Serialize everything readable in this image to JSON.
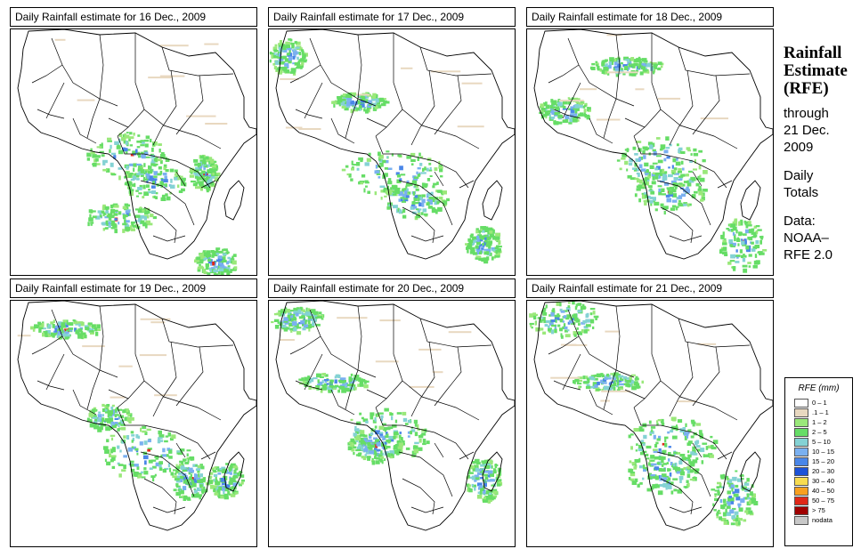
{
  "panels": [
    {
      "title": "Daily Rainfall estimate for  16 Dec., 2009"
    },
    {
      "title": "Daily Rainfall estimate for  17 Dec., 2009"
    },
    {
      "title": "Daily Rainfall estimate for  18 Dec., 2009"
    },
    {
      "title": "Daily Rainfall estimate for  19 Dec., 2009"
    },
    {
      "title": "Daily Rainfall estimate for  20 Dec., 2009"
    },
    {
      "title": "Daily Rainfall estimate for  21 Dec., 2009"
    }
  ],
  "side": {
    "heading1": "Rainfall",
    "heading2": "Estimate",
    "heading3": "(RFE)",
    "line1": "through",
    "line2": "21 Dec.",
    "line3": "2009",
    "line4": "Daily",
    "line5": "Totals",
    "line6": "Data:",
    "line7": "NOAA–",
    "line8": "RFE 2.0"
  },
  "legend": {
    "title": "RFE (mm)",
    "items": [
      {
        "label": "0 – 1",
        "color": "#ffffff"
      },
      {
        "label": ".1 – 1",
        "color": "#e8d8c0"
      },
      {
        "label": "1 – 2",
        "color": "#9ae87a"
      },
      {
        "label": "2 – 5",
        "color": "#66dd66"
      },
      {
        "label": "5 – 10",
        "color": "#84d2d4"
      },
      {
        "label": "10 – 15",
        "color": "#7ab0f0"
      },
      {
        "label": "15 – 20",
        "color": "#4a86e8"
      },
      {
        "label": "20 – 30",
        "color": "#1c52d8"
      },
      {
        "label": "30 – 40",
        "color": "#f8dc50"
      },
      {
        "label": "40 – 50",
        "color": "#f8a020"
      },
      {
        "label": "50 – 75",
        "color": "#e02818"
      },
      {
        "label": "> 75",
        "color": "#a00000"
      },
      {
        "label": "nodata",
        "color": "#c8c8c8"
      }
    ]
  }
}
